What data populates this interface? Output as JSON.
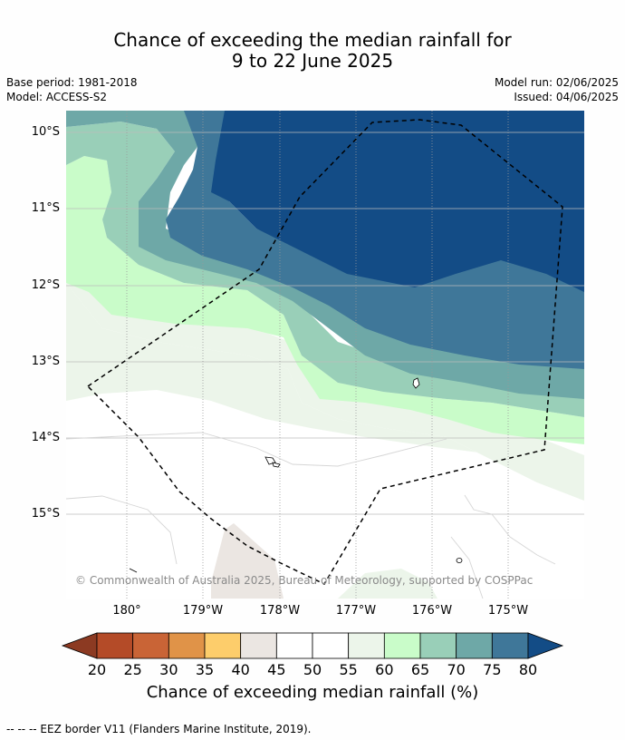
{
  "title": {
    "line1": "Chance of exceeding the median rainfall for",
    "line2": "9 to 22 June 2025"
  },
  "meta": {
    "base_period": "Base period: 1981-2018",
    "model": "Model: ACCESS-S2",
    "model_run": "Model run: 02/06/2025",
    "issued": "Issued: 04/06/2025"
  },
  "map": {
    "lat_labels": [
      "10°S",
      "11°S",
      "12°S",
      "13°S",
      "14°S",
      "15°S"
    ],
    "lon_labels": [
      "180°",
      "179°W",
      "178°W",
      "177°W",
      "176°W",
      "175°W"
    ],
    "copyright": "© Commonwealth of Australia 2025, Bureau of Meteorology, supported by COSPPac"
  },
  "colorbar": {
    "ticks": [
      "20",
      "25",
      "30",
      "35",
      "40",
      "45",
      "50",
      "55",
      "60",
      "65",
      "70",
      "75",
      "80"
    ],
    "colors": [
      "#8c3a22",
      "#b44b28",
      "#c96436",
      "#e09348",
      "#fdcd6b",
      "#ebe6e2",
      "#ffffff",
      "#ffffff",
      "#ecf5ea",
      "#c9fcc9",
      "#99cfb8",
      "#6ea8a7",
      "#3f7799",
      "#134c86"
    ],
    "label": "Chance of exceeding median rainfall (%)"
  },
  "footer": "--  --  -- EEZ border V11 (Flanders Marine Institute, 2019)."
}
